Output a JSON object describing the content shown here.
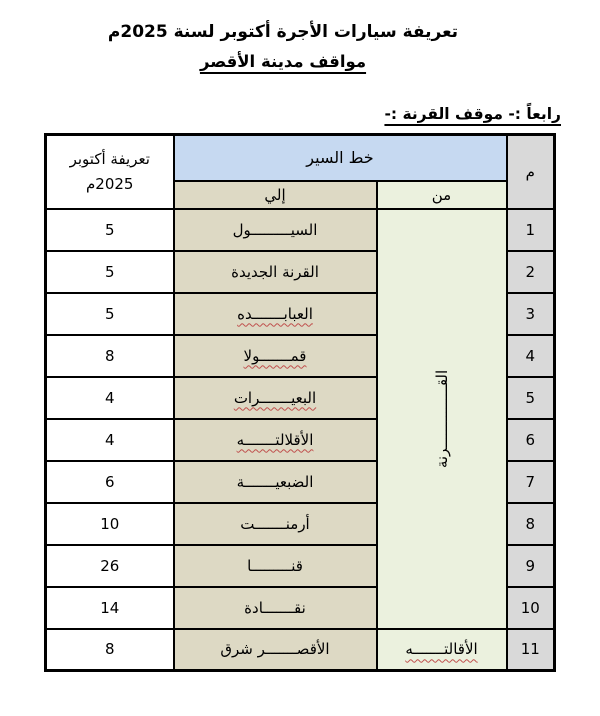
{
  "page": {
    "title": "تعريفة سيارات الأجرة أكتوبر لسنة 2025م",
    "subtitle": "مواقف مدينة الأقصر",
    "section_label": "رابعاً :- موقف القرنة :-"
  },
  "table": {
    "index_header": "م",
    "route_header": "خط السير",
    "to_header": "إلي",
    "from_header": "من",
    "tariff_header_line1": "تعريفة أكتوبر",
    "tariff_header_line2": "2025م",
    "merged_from_value": "القــــــــــــــرنة",
    "rows": [
      {
        "num": "1",
        "to": "السيـــــــــول",
        "fare": "5",
        "to_squiggle": false
      },
      {
        "num": "2",
        "to": "القرنة الجديدة",
        "fare": "5",
        "to_squiggle": false
      },
      {
        "num": "3",
        "to": "العبابـــــــده",
        "fare": "5",
        "to_squiggle": true
      },
      {
        "num": "4",
        "to": "قمـــــــولا",
        "fare": "8",
        "to_squiggle": true
      },
      {
        "num": "5",
        "to": "البعيـــــــرات",
        "fare": "4",
        "to_squiggle": true
      },
      {
        "num": "6",
        "to": "الأقلالتـــــــه",
        "fare": "4",
        "to_squiggle": true
      },
      {
        "num": "7",
        "to": "الضبعيـــــــة",
        "fare": "6",
        "to_squiggle": false
      },
      {
        "num": "8",
        "to": "أرمنـــــــت",
        "fare": "10",
        "to_squiggle": false
      },
      {
        "num": "9",
        "to": "قنـــــــــا",
        "fare": "26",
        "to_squiggle": false
      },
      {
        "num": "10",
        "to": "نقـــــــادة",
        "fare": "14",
        "to_squiggle": false
      },
      {
        "num": "11",
        "to": "الأقصـــــــر شرق",
        "from": "الأقالتـــــــه",
        "fare": "8",
        "to_squiggle": false,
        "from_squiggle": true
      }
    ],
    "colors": {
      "route_header_bg": "#c6d9f1",
      "to_bg": "#ddd9c4",
      "from_bg": "#ebf1de",
      "index_bg": "#d9d9d9",
      "fare_bg": "#ffffff",
      "border": "#000000",
      "squiggle": "#c0504d"
    }
  }
}
